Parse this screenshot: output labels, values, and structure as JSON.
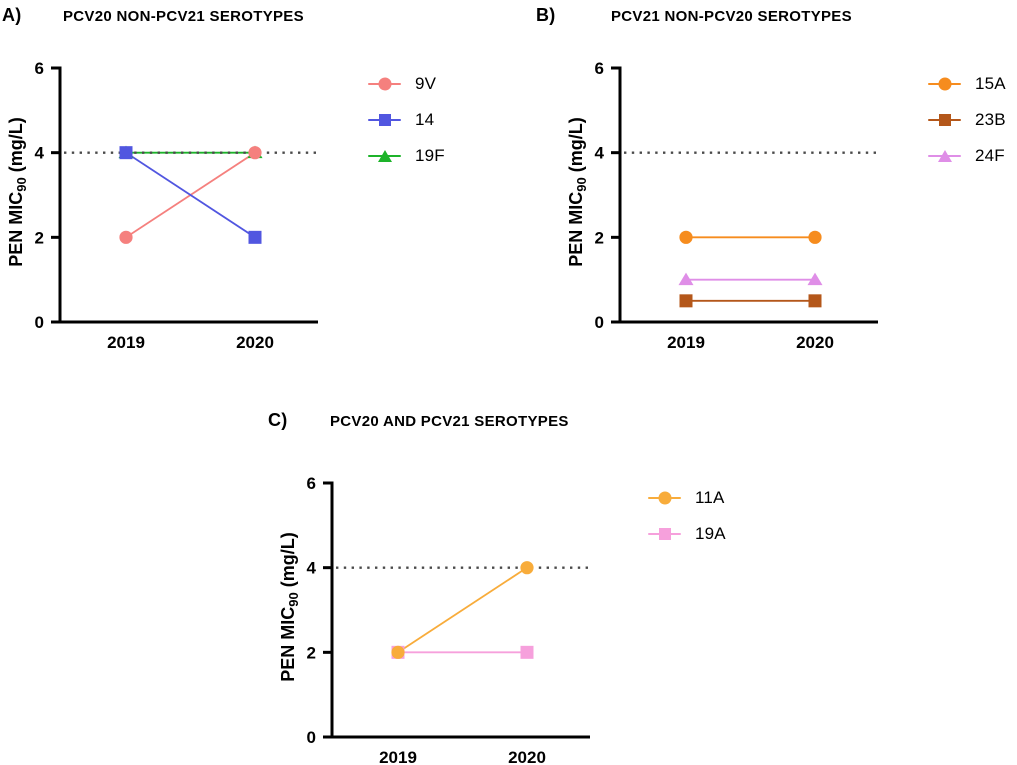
{
  "chart_data": [
    {
      "type": "line",
      "panel_label": "A)",
      "title": "PCV20 NON-PCV21 SEROTYPES",
      "x_categories": [
        "2019",
        "2020"
      ],
      "ylabel": "PEN MIC90 (mg/L)",
      "ylabel_parts": {
        "pre": "PEN MIC",
        "sub": "90",
        "post": " (mg/L)"
      },
      "ylim": [
        0,
        6
      ],
      "yticks": [
        0,
        2,
        4,
        6
      ],
      "grid": false,
      "legend_position": "right",
      "reference_line": {
        "y": 4,
        "style": "dotted",
        "color": "#4a4a4a"
      },
      "series": [
        {
          "name": "9V",
          "marker": "circle",
          "color": "#f5807e",
          "values": [
            2,
            4
          ]
        },
        {
          "name": "14",
          "marker": "square",
          "color": "#5156e0",
          "values": [
            4,
            2
          ]
        },
        {
          "name": "19F",
          "marker": "triangle",
          "color": "#1db32a",
          "values": [
            4,
            4
          ]
        }
      ],
      "draw_order": [
        2,
        0,
        1
      ]
    },
    {
      "type": "line",
      "panel_label": "B)",
      "title": "PCV21 NON-PCV20 SEROTYPES",
      "x_categories": [
        "2019",
        "2020"
      ],
      "ylabel": "PEN MIC90 (mg/L)",
      "ylabel_parts": {
        "pre": "PEN MIC",
        "sub": "90",
        "post": " (mg/L)"
      },
      "ylim": [
        0,
        6
      ],
      "yticks": [
        0,
        2,
        4,
        6
      ],
      "grid": false,
      "legend_position": "right",
      "reference_line": {
        "y": 4,
        "style": "dotted",
        "color": "#4a4a4a"
      },
      "series": [
        {
          "name": "15A",
          "marker": "circle",
          "color": "#f68c1e",
          "values": [
            2,
            2
          ]
        },
        {
          "name": "23B",
          "marker": "square",
          "color": "#b4571a",
          "values": [
            0.5,
            0.5
          ]
        },
        {
          "name": "24F",
          "marker": "triangle",
          "color": "#df8ee7",
          "values": [
            1,
            1
          ]
        }
      ],
      "draw_order": [
        1,
        2,
        0
      ]
    },
    {
      "type": "line",
      "panel_label": "C)",
      "title": "PCV20 AND PCV21 SEROTYPES",
      "x_categories": [
        "2019",
        "2020"
      ],
      "ylabel": "PEN MIC90 (mg/L)",
      "ylabel_parts": {
        "pre": "PEN MIC",
        "sub": "90",
        "post": " (mg/L)"
      },
      "ylim": [
        0,
        6
      ],
      "yticks": [
        0,
        2,
        4,
        6
      ],
      "grid": false,
      "legend_position": "right",
      "reference_line": {
        "y": 4,
        "style": "dotted",
        "color": "#4a4a4a"
      },
      "series": [
        {
          "name": "11A",
          "marker": "circle",
          "color": "#f8ac3b",
          "values": [
            2,
            4
          ]
        },
        {
          "name": "19A",
          "marker": "square",
          "color": "#f6a0dc",
          "values": [
            2,
            2
          ]
        }
      ],
      "draw_order": [
        1,
        0
      ]
    }
  ]
}
